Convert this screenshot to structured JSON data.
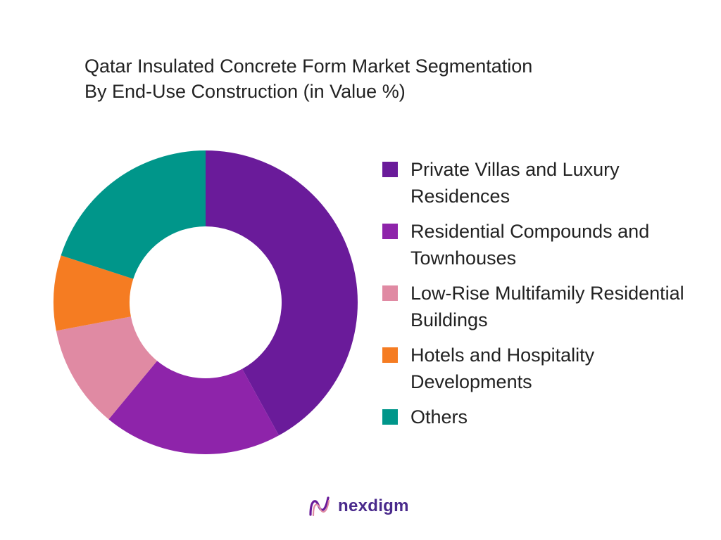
{
  "chart_data": {
    "type": "pie",
    "donut": true,
    "title_lines": [
      "Qatar Insulated Concrete Form Market Segmentation",
      "By End-Use Construction (in Value %)"
    ],
    "categories": [
      "Private Villas and Luxury Residences",
      "Residential Compounds and Townhouses",
      "Low-Rise Multifamily Residential Buildings",
      "Hotels and Hospitality Developments",
      "Others"
    ],
    "values": [
      42,
      19,
      11,
      8,
      20
    ],
    "colors": [
      "#6a1b9a",
      "#8e24aa",
      "#e08aa3",
      "#f57c22",
      "#00968a"
    ],
    "legend_position": "right"
  },
  "branding": {
    "logo_text": "nexdigm",
    "logo_color": "#4a2a8c"
  }
}
